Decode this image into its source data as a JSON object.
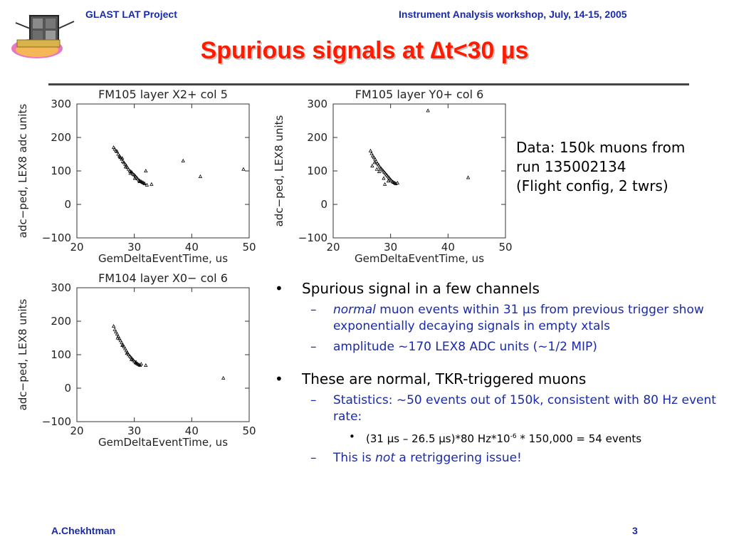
{
  "header": {
    "left": "GLAST LAT Project",
    "right": "Instrument Analysis workshop, July, 14-15, 2005"
  },
  "logo": {
    "icon": "glast-satellite-logo-icon"
  },
  "slide": {
    "title": "Spurious signals at ∆t<30 µs"
  },
  "data_note": {
    "line1": "Data: 150k muons from",
    "line2": "run 135002134",
    "line3": "(Flight config, 2 twrs)"
  },
  "bullets": {
    "b1": {
      "marker": "•",
      "text": "Spurious signal in a few channels"
    },
    "b1_1": {
      "marker": "–",
      "em": "normal",
      "text": " muon events within 31 µs from previous trigger show exponentially decaying signals in empty xtals"
    },
    "b1_2": {
      "marker": "–",
      "text": "amplitude ~170 LEX8 ADC units (~1/2 MIP)"
    },
    "b2": {
      "marker": "•",
      "text": "These are normal, TKR-triggered muons"
    },
    "b2_1": {
      "marker": "–",
      "text": "Statistics: ~50 events out of 150k, consistent with 80 Hz event rate:"
    },
    "b2_1_1": {
      "marker": "•",
      "pre": "(31 µs – 26.5 µs)*80 Hz*10",
      "sup": "-6",
      "post": " * 150,000 = 54 events"
    },
    "b2_2": {
      "marker": "–",
      "pre": "This is ",
      "em": "not",
      "post": " a retriggering issue!"
    }
  },
  "footer": {
    "author": "A.Chekhtman",
    "page": "3"
  },
  "chart_data": [
    {
      "type": "scatter",
      "title": "FM105 layer X2+ col 5",
      "xlabel": "GemDeltaEventTime, us",
      "ylabel": "adc−ped, LEX8 adc units",
      "xlim": [
        20,
        50
      ],
      "ylim": [
        -100,
        300
      ],
      "xticks": [
        "20",
        "30",
        "40",
        "50"
      ],
      "yticks": [
        "300",
        "200",
        "100",
        "0",
        "−100"
      ],
      "points": [
        [
          26.4,
          170
        ],
        [
          26.6,
          165
        ],
        [
          26.8,
          160
        ],
        [
          27.0,
          158
        ],
        [
          27.2,
          150
        ],
        [
          27.4,
          145
        ],
        [
          27.6,
          140
        ],
        [
          27.8,
          135
        ],
        [
          27.5,
          142
        ],
        [
          28.0,
          128
        ],
        [
          28.2,
          125
        ],
        [
          28.4,
          120
        ],
        [
          28.6,
          116
        ],
        [
          28.8,
          110
        ],
        [
          29.0,
          105
        ],
        [
          29.2,
          100
        ],
        [
          29.4,
          98
        ],
        [
          29.6,
          95
        ],
        [
          29.8,
          90
        ],
        [
          30.0,
          88
        ],
        [
          30.2,
          84
        ],
        [
          30.4,
          80
        ],
        [
          30.6,
          76
        ],
        [
          30.8,
          72
        ],
        [
          31.0,
          70
        ],
        [
          31.2,
          68
        ],
        [
          31.4,
          66
        ],
        [
          31.6,
          64
        ],
        [
          31.8,
          62
        ],
        [
          27.9,
          138
        ],
        [
          28.5,
          112
        ],
        [
          29.3,
          93
        ],
        [
          30.1,
          78
        ],
        [
          30.9,
          68
        ],
        [
          32.0,
          100
        ],
        [
          32.2,
          58
        ],
        [
          33.0,
          60
        ],
        [
          38.5,
          130
        ],
        [
          41.5,
          83
        ],
        [
          49.0,
          105
        ]
      ]
    },
    {
      "type": "scatter",
      "title": "FM105 layer Y0+ col 6",
      "xlabel": "GemDeltaEventTime, us",
      "ylabel": "adc−ped, LEX8 units",
      "xlim": [
        20,
        50
      ],
      "ylim": [
        -100,
        300
      ],
      "xticks": [
        "20",
        "30",
        "40",
        "50"
      ],
      "yticks": [
        "300",
        "200",
        "100",
        "0",
        "−100"
      ],
      "points": [
        [
          26.5,
          160
        ],
        [
          26.7,
          152
        ],
        [
          26.9,
          145
        ],
        [
          27.1,
          140
        ],
        [
          27.3,
          135
        ],
        [
          27.5,
          128
        ],
        [
          27.7,
          122
        ],
        [
          27.9,
          118
        ],
        [
          28.1,
          112
        ],
        [
          28.3,
          108
        ],
        [
          28.5,
          104
        ],
        [
          28.7,
          100
        ],
        [
          28.9,
          96
        ],
        [
          29.1,
          92
        ],
        [
          29.3,
          88
        ],
        [
          29.5,
          84
        ],
        [
          29.7,
          80
        ],
        [
          29.9,
          76
        ],
        [
          30.1,
          72
        ],
        [
          30.3,
          68
        ],
        [
          30.5,
          66
        ],
        [
          30.7,
          64
        ],
        [
          27.2,
          125
        ],
        [
          28.0,
          98
        ],
        [
          28.8,
          78
        ],
        [
          29.6,
          70
        ],
        [
          30.9,
          62
        ],
        [
          26.8,
          115
        ],
        [
          27.6,
          105
        ],
        [
          29.0,
          60
        ],
        [
          31.2,
          64
        ],
        [
          36.5,
          280
        ],
        [
          43.5,
          80
        ]
      ]
    },
    {
      "type": "scatter",
      "title": "FM104 layer X0− col 6",
      "xlabel": "GemDeltaEventTime, us",
      "ylabel": "adc−ped, LEX8 units",
      "xlim": [
        20,
        50
      ],
      "ylim": [
        -100,
        300
      ],
      "xticks": [
        "20",
        "30",
        "40",
        "50"
      ],
      "yticks": [
        "300",
        "200",
        "100",
        "0",
        "−100"
      ],
      "points": [
        [
          26.4,
          185
        ],
        [
          26.6,
          175
        ],
        [
          26.8,
          168
        ],
        [
          27.0,
          162
        ],
        [
          27.2,
          155
        ],
        [
          27.4,
          148
        ],
        [
          27.6,
          142
        ],
        [
          27.8,
          136
        ],
        [
          28.0,
          130
        ],
        [
          28.2,
          124
        ],
        [
          28.4,
          118
        ],
        [
          28.6,
          112
        ],
        [
          28.8,
          106
        ],
        [
          29.0,
          100
        ],
        [
          29.2,
          96
        ],
        [
          29.4,
          92
        ],
        [
          29.6,
          88
        ],
        [
          29.8,
          84
        ],
        [
          30.0,
          80
        ],
        [
          30.2,
          76
        ],
        [
          30.4,
          74
        ],
        [
          30.6,
          72
        ],
        [
          30.8,
          70
        ],
        [
          31.0,
          68
        ],
        [
          27.1,
          150
        ],
        [
          27.9,
          128
        ],
        [
          28.7,
          104
        ],
        [
          29.5,
          86
        ],
        [
          30.3,
          78
        ],
        [
          31.2,
          72
        ],
        [
          32.0,
          68
        ],
        [
          45.5,
          30
        ]
      ]
    }
  ]
}
